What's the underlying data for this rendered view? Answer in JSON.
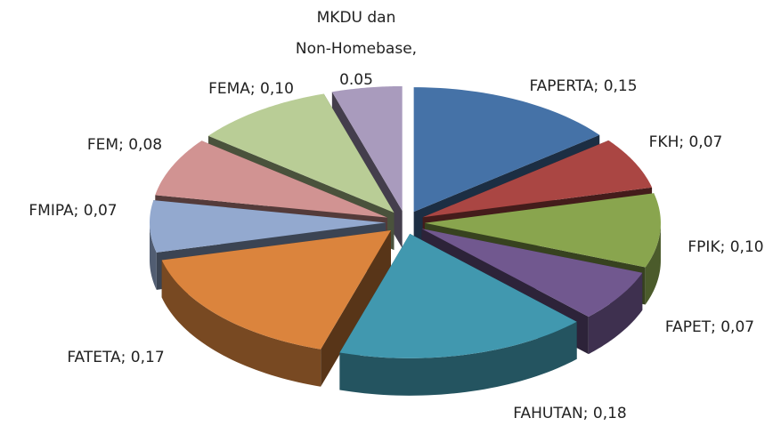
{
  "chart_data": {
    "type": "pie3d",
    "labels": [
      "FAPERTA; 0,15",
      "FKH; 0,07",
      "FPIK; 0,10",
      "FAPET; 0,07",
      "FAHUTAN; 0,18",
      "FATETA; 0,17",
      "FMIPA; 0,07",
      "FEM; 0,08",
      "FEMA; 0,10",
      "MKDU dan\nNon-Homebase,\n0.05"
    ],
    "values": [
      0.15,
      0.07,
      0.1,
      0.07,
      0.18,
      0.17,
      0.07,
      0.08,
      0.1,
      0.05
    ],
    "colors": [
      "#4572a7",
      "#aa4643",
      "#89a54e",
      "#71588f",
      "#4198af",
      "#db843d",
      "#93a9cf",
      "#d19392",
      "#b9cd96",
      "#a99bbd"
    ]
  }
}
